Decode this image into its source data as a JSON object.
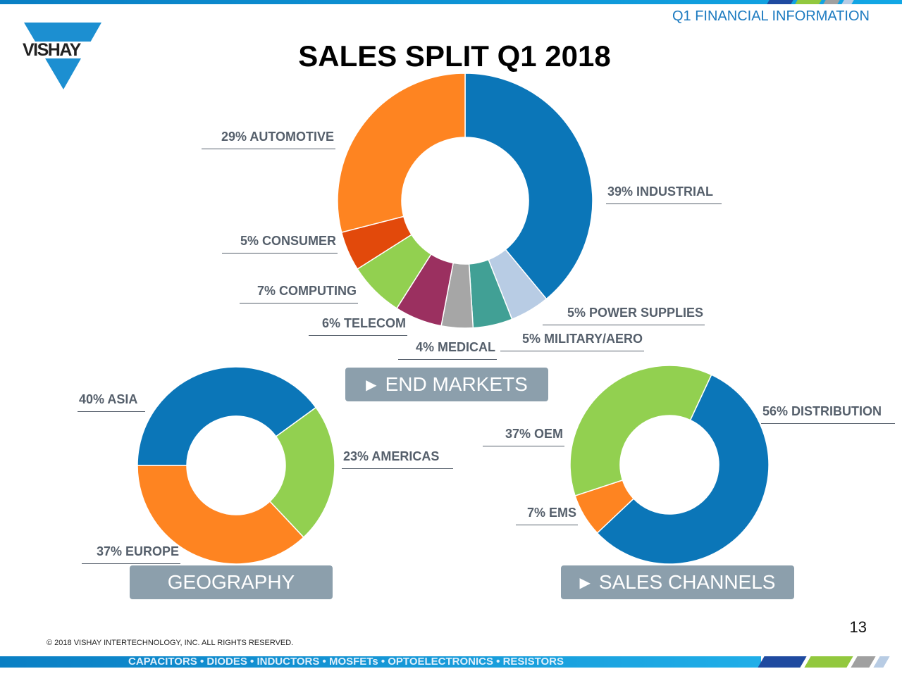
{
  "header": {
    "section": "Q1 FINANCIAL INFORMATION",
    "title": "SALES SPLIT Q1 2018",
    "logo_text": "VISHAY"
  },
  "colors": {
    "brand_blue": "#0b76bb",
    "button_gray": "#8c9fac"
  },
  "chart_data": [
    {
      "type": "pie",
      "title": "END MARKETS",
      "donut": true,
      "slices": [
        {
          "label": "39% INDUSTRIAL",
          "name": "INDUSTRIAL",
          "value": 39,
          "color": "#0b76b8"
        },
        {
          "label": "5% POWER SUPPLIES",
          "name": "POWER SUPPLIES",
          "value": 5,
          "color": "#b8cce4"
        },
        {
          "label": "5% MILITARY/AERO",
          "name": "MILITARY/AERO",
          "value": 5,
          "color": "#41a095"
        },
        {
          "label": "4% MEDICAL",
          "name": "MEDICAL",
          "value": 4,
          "color": "#a6a6a6"
        },
        {
          "label": "6% TELECOM",
          "name": "TELECOM",
          "value": 6,
          "color": "#9b3060"
        },
        {
          "label": "7% COMPUTING",
          "name": "COMPUTING",
          "value": 7,
          "color": "#92d050"
        },
        {
          "label": "5% CONSUMER",
          "name": "CONSUMER",
          "value": 5,
          "color": "#e2490b"
        },
        {
          "label": "29% AUTOMOTIVE",
          "name": "AUTOMOTIVE",
          "value": 29,
          "color": "#fe8421"
        }
      ]
    },
    {
      "type": "pie",
      "title": "GEOGRAPHY",
      "donut": true,
      "slices": [
        {
          "label": "40% ASIA",
          "name": "ASIA",
          "value": 40,
          "color": "#0b76b8"
        },
        {
          "label": "23% AMERICAS",
          "name": "AMERICAS",
          "value": 23,
          "color": "#92d050"
        },
        {
          "label": "37% EUROPE",
          "name": "EUROPE",
          "value": 37,
          "color": "#fe8421"
        }
      ]
    },
    {
      "type": "pie",
      "title": "SALES CHANNELS",
      "donut": true,
      "slices": [
        {
          "label": "56% DISTRIBUTION",
          "name": "DISTRIBUTION",
          "value": 56,
          "color": "#0b76b8"
        },
        {
          "label": "7% EMS",
          "name": "EMS",
          "value": 7,
          "color": "#fe8421"
        },
        {
          "label": "37% OEM",
          "name": "OEM",
          "value": 37,
          "color": "#92d050"
        }
      ]
    }
  ],
  "footer": {
    "page": "13",
    "copyright": "© 2018 VISHAY INTERTECHNOLOGY, INC. ALL RIGHTS RESERVED.",
    "products": "CAPACITORS • DIODES • INDUCTORS • MOSFETs • OPTOELECTRONICS • RESISTORS"
  }
}
